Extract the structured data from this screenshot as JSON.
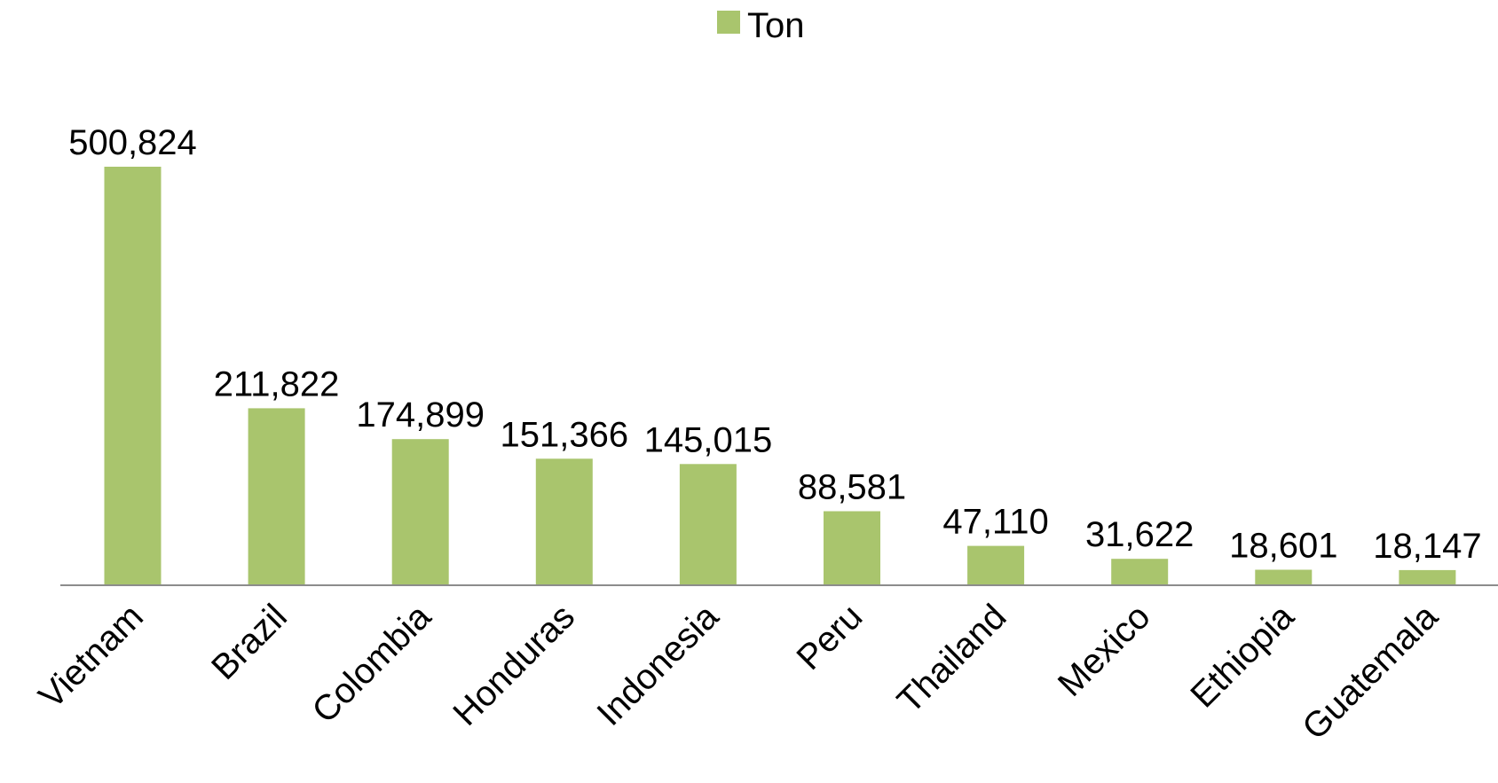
{
  "chart_data": {
    "type": "bar",
    "title": "",
    "xlabel": "",
    "ylabel": "",
    "categories": [
      "Vietnam",
      "Brazil",
      "Colombia",
      "Honduras",
      "Indonesia",
      "Peru",
      "Thailand",
      "Mexico",
      "Ethiopia",
      "Guatemala"
    ],
    "series": [
      {
        "name": "Ton",
        "color": "#a9c56d",
        "values": [
          500824,
          211822,
          174899,
          151366,
          145015,
          88581,
          47110,
          31622,
          18601,
          18147
        ],
        "labels": [
          "500,824",
          "211,822",
          "174,899",
          "151,366",
          "145,015",
          "88,581",
          "47,110",
          "31,622",
          "18,601",
          "18,147"
        ]
      }
    ],
    "ylim": [
      0,
      500824
    ],
    "grid": false,
    "legend": "top-center",
    "data_labels": true,
    "x_tick_rotation": -45
  }
}
